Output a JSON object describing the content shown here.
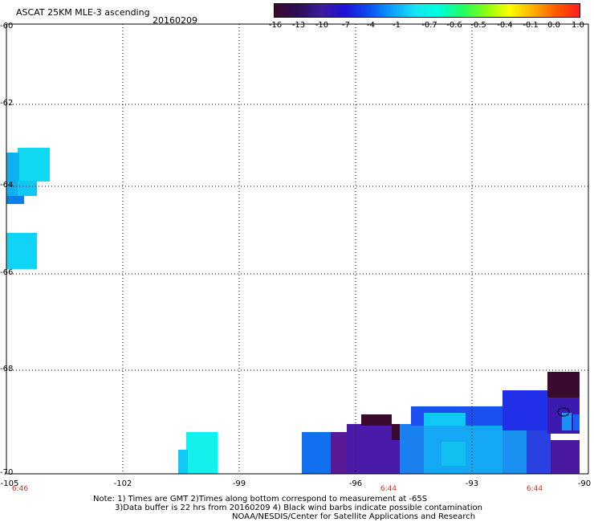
{
  "header": {
    "title": "ASCAT 25KM MLE-3 ascending",
    "date": "20160209"
  },
  "colorbar": {
    "labels": [
      "-16",
      "-13",
      "-10",
      "-7",
      "-4",
      "-1",
      "-0.7",
      "-0.6",
      "-0.5",
      "-0.4",
      "-0.1",
      "0.0",
      "1.0"
    ],
    "colors": [
      "#3a0a2e",
      "#2b0f54",
      "#3d1a9e",
      "#1d10d8",
      "#0a4ef0",
      "#0aa0f8",
      "#14e6f6",
      "#00ffdc",
      "#20ff60",
      "#8aff10",
      "#ffff00",
      "#ffb000",
      "#ff5a00",
      "#ff1e1e"
    ]
  },
  "axes": {
    "lat_labels": [
      "-60",
      "-62",
      "-64",
      "-66",
      "-68",
      "-70"
    ],
    "lon_labels": [
      "-105",
      "-102",
      "-99",
      "-96",
      "-93",
      "-90"
    ],
    "time_labels": [
      "6:46",
      "6:44",
      "6:44"
    ]
  },
  "notes": {
    "line1": "Note: 1) Times are GMT 2)Times along bottom correspond to measurement at -65S",
    "line2": "3)Data buffer is 22 hrs from 20160209 4) Black wind barbs indicate possible contamination",
    "line3": "NOAA/NESDIS/Center for Satellite Applications and Research"
  }
}
